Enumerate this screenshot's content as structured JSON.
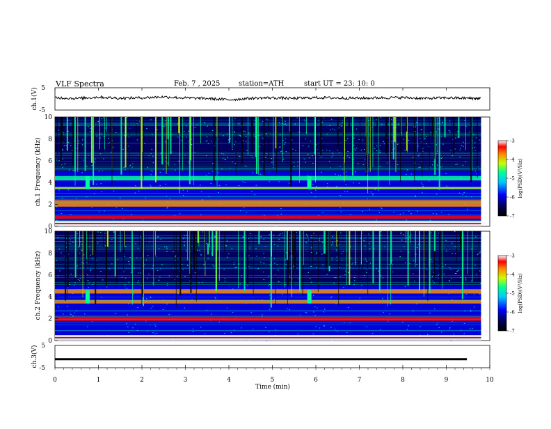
{
  "header": {
    "title": "VLF  Spectra",
    "date": "Feb. 7  , 2025",
    "station": "station=ATH",
    "start": "start  UT  =   23: 10: 0"
  },
  "colors": {
    "colormap": [
      "#00004a",
      "#0000ff",
      "#00c8ff",
      "#00ff96",
      "#c8ff00",
      "#ff8c00",
      "#ff0000",
      "#ffffff"
    ],
    "waveform": "#000000"
  },
  "chart_data": [
    {
      "type": "line",
      "panel": "ch1-waveform",
      "ylabel": "ch.1(V)",
      "ylim": [
        -5,
        5
      ],
      "yticks": [
        "5",
        "-5"
      ],
      "x": [
        0,
        0.5,
        1,
        1.5,
        2,
        2.5,
        3,
        3.5,
        4,
        4.5,
        5,
        5.5,
        6,
        6.5,
        7,
        7.5,
        8,
        8.5,
        9,
        9.5,
        9.8
      ],
      "values": [
        0.6,
        0.2,
        0.8,
        0.3,
        0.5,
        0.9,
        0.4,
        0.2,
        -0.4,
        0.3,
        0.5,
        0.2,
        0.6,
        0.4,
        0.3,
        0.5,
        0.6,
        0.2,
        0.5,
        0.3,
        0.2
      ],
      "xlim": [
        0,
        10
      ]
    },
    {
      "type": "heatmap",
      "panel": "ch1-spectrogram",
      "ylabel": "ch.1  Frequency (kHz)",
      "ylim": [
        0,
        10
      ],
      "yticks": [
        "0",
        "2",
        "4",
        "6",
        "8",
        "10"
      ],
      "xlim": [
        0,
        10
      ],
      "bands_khz": [
        {
          "from": 0.1,
          "to": 0.5,
          "level": 5.5
        },
        {
          "from": 0.7,
          "to": 1.0,
          "level": 6.3
        },
        {
          "from": 1.8,
          "to": 2.4,
          "level": 5.0
        },
        {
          "from": 3.4,
          "to": 3.6,
          "level": 4.0
        },
        {
          "from": 4.2,
          "to": 4.6,
          "level": 2.5
        }
      ],
      "colorbar": {
        "label": "log(PSD)(V²/Hz)",
        "min": -7,
        "max": -3,
        "ticks": [
          "-3",
          "-4",
          "-5",
          "-6",
          "-7"
        ]
      }
    },
    {
      "type": "heatmap",
      "panel": "ch2-spectrogram",
      "ylabel": "ch.2  Frequency (kHz)",
      "ylim": [
        0,
        10
      ],
      "yticks": [
        "0",
        "2",
        "4",
        "6",
        "8",
        "10"
      ],
      "xlim": [
        0,
        10
      ],
      "bands_khz": [
        {
          "from": 0.1,
          "to": 0.4,
          "level": 5.5
        },
        {
          "from": 1.8,
          "to": 2.2,
          "level": 6.0
        },
        {
          "from": 3.4,
          "to": 3.7,
          "level": 5.0
        },
        {
          "from": 4.3,
          "to": 4.7,
          "level": 5.0
        }
      ],
      "colorbar": {
        "label": "log(PSD)(V²/Hz)",
        "min": -7,
        "max": -3,
        "ticks": [
          "-3",
          "-4",
          "-5",
          "-6",
          "-7"
        ]
      }
    },
    {
      "type": "line",
      "panel": "ch3-waveform",
      "ylabel": "ch.3(V)",
      "ylim": [
        -5,
        5
      ],
      "yticks": [
        "5",
        "-5"
      ],
      "x": [
        0,
        9.8
      ],
      "values": [
        -1.2,
        -1.2
      ],
      "xlim": [
        0,
        10
      ],
      "xlabel": "Time  (min)",
      "xticks": [
        "0",
        "1",
        "2",
        "3",
        "4",
        "5",
        "6",
        "7",
        "8",
        "9",
        "10"
      ]
    }
  ]
}
